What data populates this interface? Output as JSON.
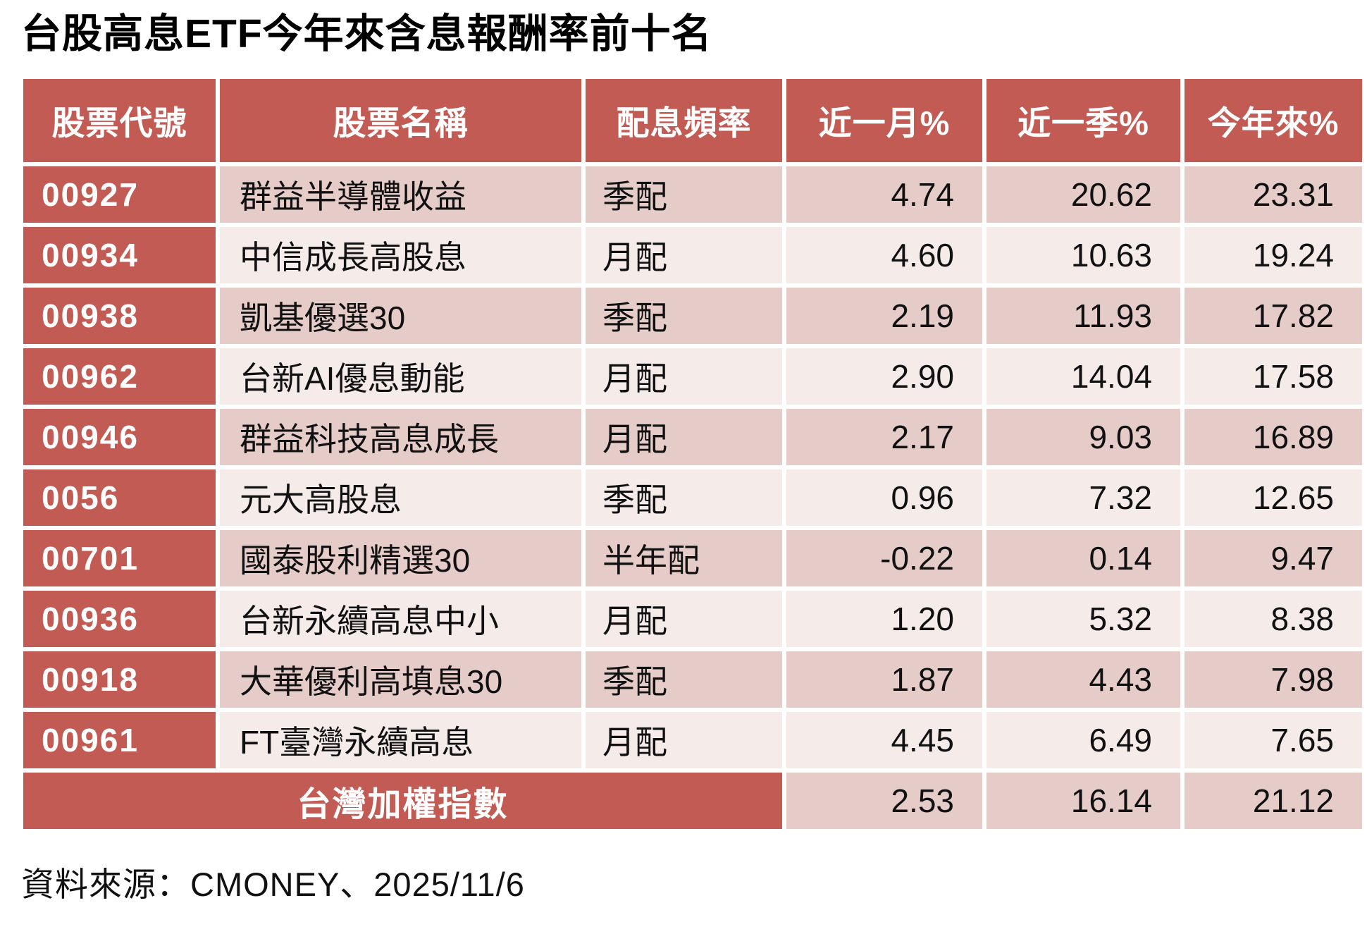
{
  "title": "台股高息ETF今年來含息報酬率前十名",
  "colors": {
    "header_red": "#c25b54",
    "row_dark_pink": "#e5ccc8",
    "row_light_pink": "#f5ebe9",
    "gridline": "#ffffff",
    "header_text": "#ffffff",
    "body_text": "#111111"
  },
  "table": {
    "headers": [
      "股票代號",
      "股票名稱",
      "配息頻率",
      "近一月%",
      "近一季%",
      "今年來%"
    ],
    "rows": [
      {
        "code": "00927",
        "name": "群益半導體收益",
        "freq": "季配",
        "m1": "4.74",
        "q1": "20.62",
        "ytd": "23.31"
      },
      {
        "code": "00934",
        "name": "中信成長高股息",
        "freq": "月配",
        "m1": "4.60",
        "q1": "10.63",
        "ytd": "19.24"
      },
      {
        "code": "00938",
        "name": "凱基優選30",
        "freq": "季配",
        "m1": "2.19",
        "q1": "11.93",
        "ytd": "17.82"
      },
      {
        "code": "00962",
        "name": "台新AI優息動能",
        "freq": "月配",
        "m1": "2.90",
        "q1": "14.04",
        "ytd": "17.58"
      },
      {
        "code": "00946",
        "name": "群益科技高息成長",
        "freq": "月配",
        "m1": "2.17",
        "q1": "9.03",
        "ytd": "16.89"
      },
      {
        "code": "0056",
        "name": "元大高股息",
        "freq": "季配",
        "m1": "0.96",
        "q1": "7.32",
        "ytd": "12.65"
      },
      {
        "code": "00701",
        "name": "國泰股利精選30",
        "freq": "半年配",
        "m1": "-0.22",
        "q1": "0.14",
        "ytd": "9.47"
      },
      {
        "code": "00936",
        "name": "台新永續高息中小",
        "freq": "月配",
        "m1": "1.20",
        "q1": "5.32",
        "ytd": "8.38"
      },
      {
        "code": "00918",
        "name": "大華優利高填息30",
        "freq": "季配",
        "m1": "1.87",
        "q1": "4.43",
        "ytd": "7.98"
      },
      {
        "code": "00961",
        "name": "FT臺灣永續高息",
        "freq": "月配",
        "m1": "4.45",
        "q1": "6.49",
        "ytd": "7.65"
      }
    ],
    "summary": {
      "label": "台灣加權指數",
      "m1": "2.53",
      "q1": "16.14",
      "ytd": "21.12"
    }
  },
  "footer": {
    "source": "資料來源：CMONEY、2025/11/6"
  },
  "chart_data": {
    "type": "table",
    "title": "台股高息ETF今年來含息報酬率前十名",
    "columns": [
      "股票代號",
      "股票名稱",
      "配息頻率",
      "近一月%",
      "近一季%",
      "今年來%"
    ],
    "rows": [
      [
        "00927",
        "群益半導體收益",
        "季配",
        4.74,
        20.62,
        23.31
      ],
      [
        "00934",
        "中信成長高股息",
        "月配",
        4.6,
        10.63,
        19.24
      ],
      [
        "00938",
        "凱基優選30",
        "季配",
        2.19,
        11.93,
        17.82
      ],
      [
        "00962",
        "台新AI優息動能",
        "月配",
        2.9,
        14.04,
        17.58
      ],
      [
        "00946",
        "群益科技高息成長",
        "月配",
        2.17,
        9.03,
        16.89
      ],
      [
        "0056",
        "元大高股息",
        "季配",
        0.96,
        7.32,
        12.65
      ],
      [
        "00701",
        "國泰股利精選30",
        "半年配",
        -0.22,
        0.14,
        9.47
      ],
      [
        "00936",
        "台新永續高息中小",
        "月配",
        1.2,
        5.32,
        8.38
      ],
      [
        "00918",
        "大華優利高填息30",
        "季配",
        1.87,
        4.43,
        7.98
      ],
      [
        "00961",
        "FT臺灣永續高息",
        "月配",
        4.45,
        6.49,
        7.65
      ]
    ],
    "benchmark_row": [
      "台灣加權指數",
      2.53,
      16.14,
      21.12
    ],
    "source_note": "資料來源：CMONEY、2025/11/6"
  }
}
